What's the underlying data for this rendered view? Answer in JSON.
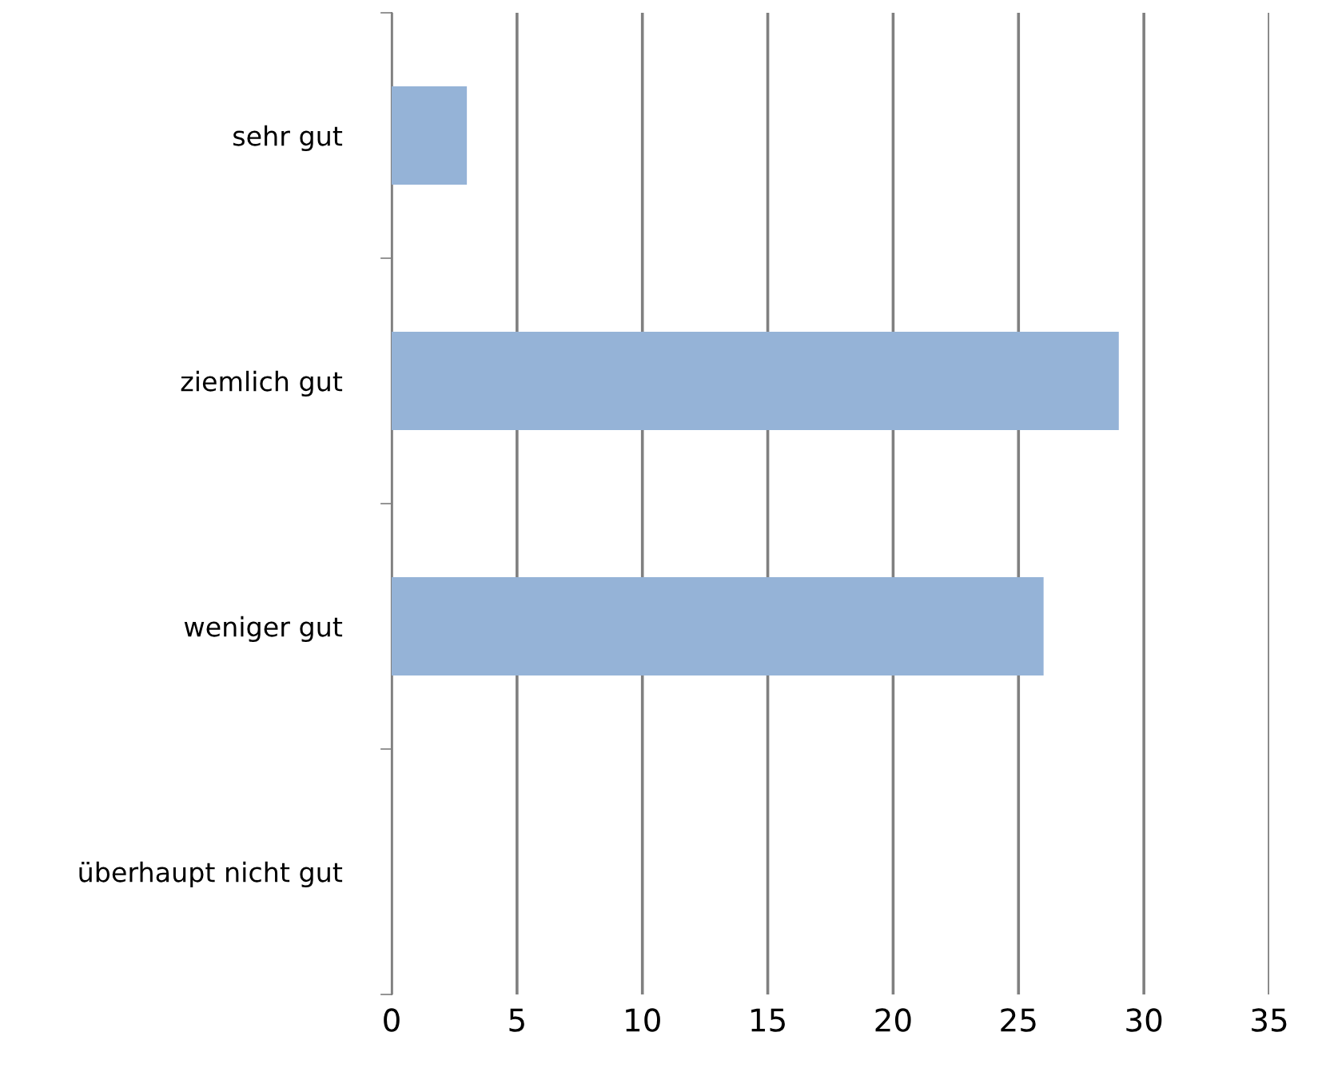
{
  "chart_data": {
    "type": "bar",
    "orientation": "horizontal",
    "categories": [
      "sehr gut",
      "ziemlich gut",
      "weniger gut",
      "überhaupt nicht gut"
    ],
    "values": [
      3,
      29,
      26,
      0
    ],
    "color": "#95b3d7",
    "xlim": [
      0,
      35
    ],
    "xticks": [
      0,
      5,
      10,
      15,
      20,
      25,
      30,
      35
    ],
    "grid": "x"
  }
}
